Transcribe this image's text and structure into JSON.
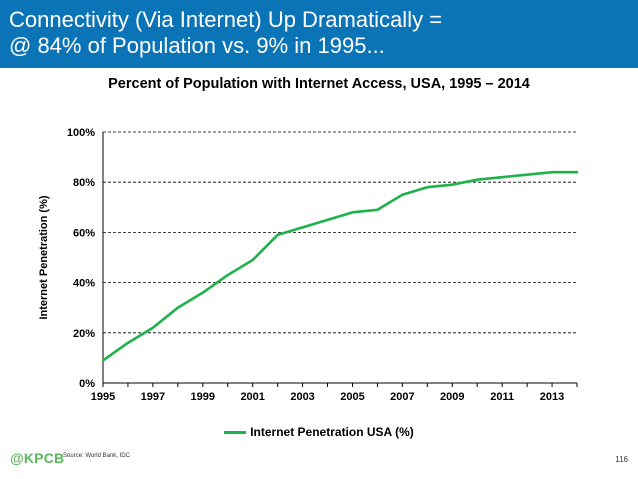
{
  "header": {
    "line1": "Connectivity (Via Internet) Up Dramatically =",
    "line2": "@ 84% of Population vs. 9% in 1995...",
    "background_color": "#0a74b7"
  },
  "chart_data": {
    "type": "line",
    "title": "Percent of Population with Internet Access, USA, 1995 – 2014",
    "xlabel": "",
    "ylabel": "Internet Penetration (%)",
    "x": [
      1995,
      1996,
      1997,
      1998,
      1999,
      2000,
      2001,
      2002,
      2003,
      2004,
      2005,
      2006,
      2007,
      2008,
      2009,
      2010,
      2011,
      2012,
      2013,
      2014
    ],
    "series": [
      {
        "name": "Internet Penetration USA (%)",
        "color": "#1fb24a",
        "values": [
          9,
          16,
          22,
          30,
          36,
          43,
          49,
          59,
          62,
          65,
          68,
          69,
          75,
          78,
          79,
          81,
          82,
          83,
          84,
          84
        ]
      }
    ],
    "xlim": [
      1995,
      2014
    ],
    "ylim": [
      0,
      100
    ],
    "x_tick_labels": [
      "1995",
      "1997",
      "1999",
      "2001",
      "2003",
      "2005",
      "2007",
      "2009",
      "2011",
      "2013"
    ],
    "y_tick_labels": [
      "0%",
      "20%",
      "40%",
      "60%",
      "80%",
      "100%"
    ],
    "grid": "horizontal dashed",
    "legend_position": "bottom"
  },
  "footer": {
    "brand": "@KPCB",
    "source": "Source: World Bank, IDC",
    "page_number": "116"
  }
}
